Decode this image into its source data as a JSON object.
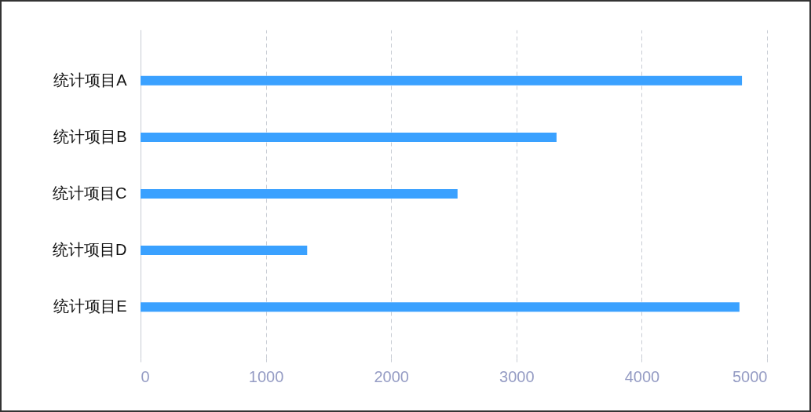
{
  "chart_data": {
    "type": "bar",
    "orientation": "horizontal",
    "categories": [
      "统计项目A",
      "统计项目B",
      "统计项目C",
      "统计项目D",
      "统计项目E"
    ],
    "values": [
      4800,
      3320,
      2530,
      1330,
      4780
    ],
    "color": "#3aa1ff",
    "xlim": [
      0,
      5000
    ],
    "xticks": [
      0,
      1000,
      2000,
      3000,
      4000,
      5000
    ],
    "grid": "x"
  }
}
